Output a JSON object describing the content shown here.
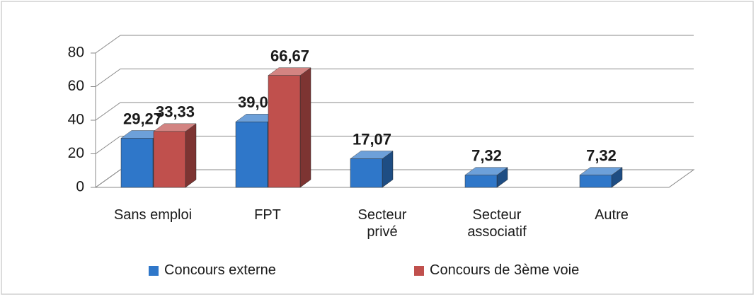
{
  "chart_data": {
    "type": "bar3d",
    "categories": [
      "Sans emploi",
      "FPT",
      "Secteur privé",
      "Secteur associatif",
      "Autre"
    ],
    "series": [
      {
        "name": "Concours externe",
        "color": "#2f77c9",
        "values": [
          29.27,
          39.02,
          17.07,
          7.32,
          7.32
        ],
        "value_labels": [
          "29,27",
          "39,02",
          "17,07",
          "7,32",
          "7,32"
        ]
      },
      {
        "name": "Concours de 3ème voie",
        "color": "#c0504d",
        "values": [
          33.33,
          66.67,
          null,
          null,
          null
        ],
        "value_labels": [
          "33,33",
          "66,67",
          null,
          null,
          null
        ]
      }
    ],
    "ylim": [
      0,
      80
    ],
    "yticks": [
      0,
      20,
      40,
      60,
      80
    ],
    "grid": true,
    "legend": "bottom"
  }
}
